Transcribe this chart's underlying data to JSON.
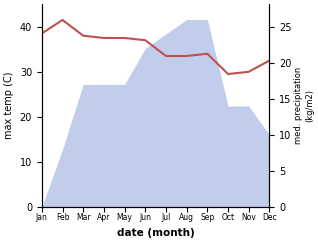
{
  "months": [
    1,
    2,
    3,
    4,
    5,
    6,
    7,
    8,
    9,
    10,
    11,
    12
  ],
  "month_labels": [
    "Jan",
    "Feb",
    "Mar",
    "Apr",
    "May",
    "Jun",
    "Jul",
    "Aug",
    "Sep",
    "Oct",
    "Nov",
    "Dec"
  ],
  "temp_line": [
    38.5,
    41.5,
    38.0,
    37.5,
    37.5,
    37.0,
    33.5,
    33.5,
    34.0,
    29.5,
    30.0,
    32.5
  ],
  "precip_area": [
    0,
    8,
    17,
    17,
    17,
    22,
    24,
    26,
    26,
    14,
    14,
    10
  ],
  "ylabel_left": "max temp (C)",
  "ylabel_right": "med. precipitation\n(kg/m2)",
  "xlabel": "date (month)",
  "ylim_left": [
    0,
    45
  ],
  "ylim_right": [
    0,
    28.125
  ],
  "temp_color": "#c0504d",
  "precip_color": "#b8c4e8",
  "background_color": "#ffffff",
  "left_yticks": [
    0,
    10,
    20,
    30,
    40
  ],
  "right_yticks": [
    0,
    5,
    10,
    15,
    20,
    25
  ]
}
